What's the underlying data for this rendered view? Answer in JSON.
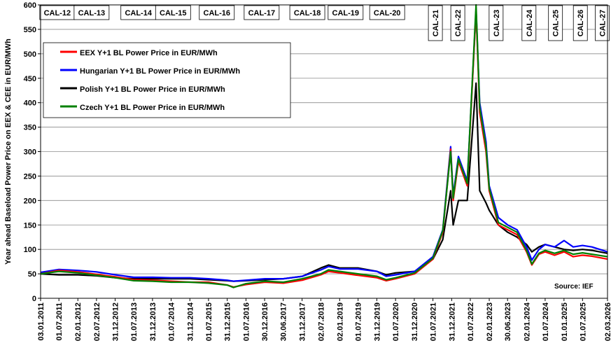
{
  "chart_data": {
    "type": "line",
    "ylabel": "Year ahead Baseload Power Price on EEX & CEE in EUR/MWh",
    "ylim": [
      0,
      600
    ],
    "yticks": [
      0,
      50,
      100,
      150,
      200,
      250,
      300,
      350,
      400,
      450,
      500,
      550,
      600
    ],
    "xlim": [
      "2011-01-03",
      "2026-03-02"
    ],
    "grid": "horizontal",
    "legend_position": "top-left",
    "x_tick_labels": [
      {
        "date": "2011-01-03",
        "label": "03.01.2011"
      },
      {
        "date": "2011-07-01",
        "label": "01.07.2011"
      },
      {
        "date": "2012-01-02",
        "label": "02.01.2012"
      },
      {
        "date": "2012-07-02",
        "label": "02.07.2012"
      },
      {
        "date": "2012-12-31",
        "label": "31.12.2012"
      },
      {
        "date": "2013-07-01",
        "label": "01.07.2013"
      },
      {
        "date": "2013-12-31",
        "label": "31.12.2013"
      },
      {
        "date": "2014-07-01",
        "label": "01.07.2014"
      },
      {
        "date": "2014-12-31",
        "label": "31.12.2014"
      },
      {
        "date": "2015-07-01",
        "label": "01.07.2015"
      },
      {
        "date": "2015-12-31",
        "label": "31.12.2015"
      },
      {
        "date": "2016-07-01",
        "label": "01.07.2016"
      },
      {
        "date": "2016-12-30",
        "label": "30.12.2016"
      },
      {
        "date": "2017-06-30",
        "label": "30.06.2017"
      },
      {
        "date": "2017-12-31",
        "label": "31.12.2017"
      },
      {
        "date": "2018-07-02",
        "label": "02.07.2018"
      },
      {
        "date": "2019-01-02",
        "label": "02.01.2019"
      },
      {
        "date": "2019-07-01",
        "label": "01.07.2019"
      },
      {
        "date": "2019-12-31",
        "label": "31.12.2019"
      },
      {
        "date": "2020-07-01",
        "label": "01.07.2020"
      },
      {
        "date": "2020-12-31",
        "label": "31.12.2020"
      },
      {
        "date": "2021-07-01",
        "label": "01.07.2021"
      },
      {
        "date": "2021-12-31",
        "label": "31.12.2021"
      },
      {
        "date": "2022-07-01",
        "label": "01.07.2022"
      },
      {
        "date": "2023-01-02",
        "label": "02.01.2023"
      },
      {
        "date": "2023-06-30",
        "label": "30.06.2023"
      },
      {
        "date": "2024-01-02",
        "label": "02.01.2024"
      },
      {
        "date": "2024-07-01",
        "label": "01.07.2024"
      },
      {
        "date": "2025-01-01",
        "label": "01.01.2025"
      },
      {
        "date": "2025-07-01",
        "label": "01.07.2025"
      },
      {
        "date": "2026-03-02",
        "label": "02.03.2026"
      }
    ],
    "series": [
      {
        "name": "EEX Y+1 BL Power Price in EUR/MWh",
        "color": "#ff0000",
        "points": [
          [
            "2011-01-03",
            50
          ],
          [
            "2011-07-01",
            57
          ],
          [
            "2012-01-02",
            54
          ],
          [
            "2012-07-02",
            49
          ],
          [
            "2013-01-02",
            44
          ],
          [
            "2013-07-01",
            38
          ],
          [
            "2014-01-02",
            37
          ],
          [
            "2014-07-01",
            35
          ],
          [
            "2015-01-02",
            33
          ],
          [
            "2015-07-01",
            33
          ],
          [
            "2015-12-31",
            27
          ],
          [
            "2016-03-01",
            23
          ],
          [
            "2016-07-01",
            28
          ],
          [
            "2017-01-02",
            33
          ],
          [
            "2017-07-01",
            31
          ],
          [
            "2018-01-02",
            37
          ],
          [
            "2018-07-02",
            48
          ],
          [
            "2018-09-15",
            55
          ],
          [
            "2019-01-02",
            52
          ],
          [
            "2019-07-01",
            47
          ],
          [
            "2020-01-02",
            42
          ],
          [
            "2020-04-01",
            36
          ],
          [
            "2020-07-01",
            40
          ],
          [
            "2021-01-04",
            50
          ],
          [
            "2021-07-01",
            80
          ],
          [
            "2021-10-05",
            135
          ],
          [
            "2021-12-21",
            305
          ],
          [
            "2022-01-15",
            200
          ],
          [
            "2022-03-07",
            280
          ],
          [
            "2022-06-01",
            230
          ],
          [
            "2022-08-26",
            590
          ],
          [
            "2022-10-01",
            380
          ],
          [
            "2022-12-01",
            300
          ],
          [
            "2023-01-02",
            220
          ],
          [
            "2023-04-01",
            150
          ],
          [
            "2023-07-01",
            140
          ],
          [
            "2023-10-01",
            130
          ],
          [
            "2024-01-02",
            95
          ],
          [
            "2024-02-22",
            68
          ],
          [
            "2024-05-01",
            90
          ],
          [
            "2024-07-01",
            95
          ],
          [
            "2024-10-01",
            88
          ],
          [
            "2025-01-02",
            95
          ],
          [
            "2025-04-01",
            85
          ],
          [
            "2025-07-01",
            88
          ],
          [
            "2025-10-01",
            86
          ],
          [
            "2026-03-02",
            80
          ]
        ]
      },
      {
        "name": "Hungarian Y+1 BL Power Price in EUR/MWh",
        "color": "#0000ff",
        "points": [
          [
            "2011-01-03",
            53
          ],
          [
            "2011-07-01",
            59
          ],
          [
            "2012-01-02",
            57
          ],
          [
            "2012-07-02",
            54
          ],
          [
            "2013-01-02",
            48
          ],
          [
            "2013-07-01",
            43
          ],
          [
            "2014-01-02",
            43
          ],
          [
            "2014-07-01",
            42
          ],
          [
            "2015-01-02",
            42
          ],
          [
            "2015-07-01",
            40
          ],
          [
            "2015-12-31",
            37
          ],
          [
            "2016-03-01",
            35
          ],
          [
            "2016-07-01",
            37
          ],
          [
            "2017-01-02",
            40
          ],
          [
            "2017-07-01",
            40
          ],
          [
            "2018-01-02",
            45
          ],
          [
            "2018-07-02",
            58
          ],
          [
            "2018-09-15",
            65
          ],
          [
            "2019-01-02",
            60
          ],
          [
            "2019-07-01",
            60
          ],
          [
            "2020-01-02",
            55
          ],
          [
            "2020-04-01",
            45
          ],
          [
            "2020-07-01",
            48
          ],
          [
            "2021-01-04",
            55
          ],
          [
            "2021-07-01",
            85
          ],
          [
            "2021-10-05",
            140
          ],
          [
            "2021-12-21",
            310
          ],
          [
            "2022-01-15",
            210
          ],
          [
            "2022-03-07",
            290
          ],
          [
            "2022-06-01",
            240
          ],
          [
            "2022-08-26",
            590
          ],
          [
            "2022-10-01",
            400
          ],
          [
            "2022-12-01",
            320
          ],
          [
            "2023-01-02",
            230
          ],
          [
            "2023-04-01",
            165
          ],
          [
            "2023-07-01",
            150
          ],
          [
            "2023-10-01",
            140
          ],
          [
            "2024-01-02",
            105
          ],
          [
            "2024-02-22",
            78
          ],
          [
            "2024-05-01",
            100
          ],
          [
            "2024-07-01",
            110
          ],
          [
            "2024-10-01",
            105
          ],
          [
            "2025-01-02",
            118
          ],
          [
            "2025-04-01",
            105
          ],
          [
            "2025-07-01",
            108
          ],
          [
            "2025-10-01",
            105
          ],
          [
            "2026-03-02",
            95
          ]
        ]
      },
      {
        "name": "Polish Y+1 BL Power Price in EUR/MWh",
        "color": "#000000",
        "points": [
          [
            "2011-01-03",
            50
          ],
          [
            "2011-07-01",
            48
          ],
          [
            "2012-01-02",
            48
          ],
          [
            "2012-07-02",
            46
          ],
          [
            "2013-01-02",
            42
          ],
          [
            "2013-07-01",
            40
          ],
          [
            "2014-01-02",
            40
          ],
          [
            "2014-07-01",
            40
          ],
          [
            "2015-01-02",
            40
          ],
          [
            "2015-07-01",
            38
          ],
          [
            "2015-12-31",
            36
          ],
          [
            "2016-03-01",
            35
          ],
          [
            "2016-07-01",
            36
          ],
          [
            "2017-01-02",
            38
          ],
          [
            "2017-07-01",
            40
          ],
          [
            "2018-01-02",
            45
          ],
          [
            "2018-07-02",
            62
          ],
          [
            "2018-09-15",
            68
          ],
          [
            "2019-01-02",
            62
          ],
          [
            "2019-07-01",
            62
          ],
          [
            "2020-01-02",
            55
          ],
          [
            "2020-04-01",
            48
          ],
          [
            "2020-07-01",
            52
          ],
          [
            "2021-01-04",
            55
          ],
          [
            "2021-07-01",
            80
          ],
          [
            "2021-10-05",
            120
          ],
          [
            "2021-12-21",
            220
          ],
          [
            "2022-01-15",
            150
          ],
          [
            "2022-03-07",
            200
          ],
          [
            "2022-06-01",
            200
          ],
          [
            "2022-08-26",
            440
          ],
          [
            "2022-10-01",
            220
          ],
          [
            "2022-12-01",
            195
          ],
          [
            "2023-01-02",
            180
          ],
          [
            "2023-04-01",
            150
          ],
          [
            "2023-07-01",
            135
          ],
          [
            "2023-10-01",
            125
          ],
          [
            "2024-01-02",
            110
          ],
          [
            "2024-02-22",
            95
          ],
          [
            "2024-05-01",
            105
          ],
          [
            "2024-07-01",
            110
          ],
          [
            "2024-10-01",
            105
          ],
          [
            "2025-01-02",
            100
          ],
          [
            "2025-04-01",
            98
          ],
          [
            "2025-07-01",
            100
          ],
          [
            "2025-10-01",
            98
          ],
          [
            "2026-03-02",
            92
          ]
        ]
      },
      {
        "name": "Czech Y+1 BL Power Price in EUR/MWh",
        "color": "#008000",
        "points": [
          [
            "2011-01-03",
            50
          ],
          [
            "2011-07-01",
            55
          ],
          [
            "2012-01-02",
            52
          ],
          [
            "2012-07-02",
            47
          ],
          [
            "2013-01-02",
            42
          ],
          [
            "2013-07-01",
            36
          ],
          [
            "2014-01-02",
            35
          ],
          [
            "2014-07-01",
            33
          ],
          [
            "2015-01-02",
            33
          ],
          [
            "2015-07-01",
            31
          ],
          [
            "2015-12-31",
            27
          ],
          [
            "2016-03-01",
            22
          ],
          [
            "2016-07-01",
            30
          ],
          [
            "2017-01-02",
            35
          ],
          [
            "2017-07-01",
            33
          ],
          [
            "2018-01-02",
            40
          ],
          [
            "2018-07-02",
            50
          ],
          [
            "2018-09-15",
            58
          ],
          [
            "2019-01-02",
            55
          ],
          [
            "2019-07-01",
            50
          ],
          [
            "2020-01-02",
            45
          ],
          [
            "2020-04-01",
            38
          ],
          [
            "2020-07-01",
            42
          ],
          [
            "2021-01-04",
            52
          ],
          [
            "2021-07-01",
            82
          ],
          [
            "2021-10-05",
            138
          ],
          [
            "2021-12-21",
            300
          ],
          [
            "2022-01-15",
            205
          ],
          [
            "2022-03-07",
            285
          ],
          [
            "2022-06-01",
            235
          ],
          [
            "2022-08-26",
            600
          ],
          [
            "2022-10-01",
            390
          ],
          [
            "2022-12-01",
            310
          ],
          [
            "2023-01-02",
            225
          ],
          [
            "2023-04-01",
            155
          ],
          [
            "2023-07-01",
            145
          ],
          [
            "2023-10-01",
            135
          ],
          [
            "2024-01-02",
            98
          ],
          [
            "2024-02-22",
            70
          ],
          [
            "2024-05-01",
            92
          ],
          [
            "2024-07-01",
            98
          ],
          [
            "2024-10-01",
            92
          ],
          [
            "2025-01-02",
            98
          ],
          [
            "2025-04-01",
            90
          ],
          [
            "2025-07-01",
            93
          ],
          [
            "2025-10-01",
            90
          ],
          [
            "2026-03-02",
            85
          ]
        ]
      }
    ],
    "annotations": [
      {
        "label": "CAL-12",
        "date": "2011-06-15",
        "orientation": "horizontal"
      },
      {
        "label": "CAL-13",
        "date": "2012-05-15",
        "orientation": "horizontal"
      },
      {
        "label": "CAL-14",
        "date": "2013-08-15",
        "orientation": "horizontal"
      },
      {
        "label": "CAL-15",
        "date": "2014-07-20",
        "orientation": "horizontal"
      },
      {
        "label": "CAL-16",
        "date": "2015-09-20",
        "orientation": "horizontal"
      },
      {
        "label": "CAL-17",
        "date": "2016-12-01",
        "orientation": "horizontal"
      },
      {
        "label": "CAL-18",
        "date": "2018-02-20",
        "orientation": "horizontal"
      },
      {
        "label": "CAL-19",
        "date": "2019-03-01",
        "orientation": "horizontal"
      },
      {
        "label": "CAL-20",
        "date": "2020-04-10",
        "orientation": "horizontal"
      },
      {
        "label": "CAL-21",
        "date": "2021-07-25",
        "orientation": "vertical"
      },
      {
        "label": "CAL-22",
        "date": "2022-03-01",
        "orientation": "vertical"
      },
      {
        "label": "CAL-23",
        "date": "2023-03-10",
        "orientation": "vertical"
      },
      {
        "label": "CAL-24",
        "date": "2024-01-25",
        "orientation": "vertical"
      },
      {
        "label": "CAL-25",
        "date": "2024-10-10",
        "orientation": "vertical"
      },
      {
        "label": "CAL-26",
        "date": "2025-06-10",
        "orientation": "vertical"
      },
      {
        "label": "CAL-27",
        "date": "2026-01-10",
        "orientation": "vertical"
      }
    ],
    "source": "Source: IEF"
  }
}
